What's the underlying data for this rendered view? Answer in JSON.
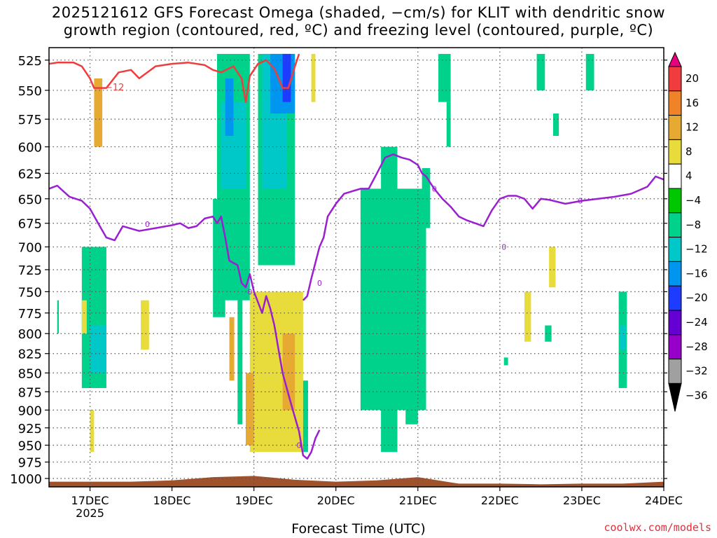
{
  "title": {
    "line1": "2025121612 GFS Forecast Omega (shaded, −cm/s) for KLIT with dendritic snow",
    "line2": "growth region (contoured, red, ºC) and freezing level (contoured, purple, ºC)"
  },
  "credit": "coolwx.com/models",
  "chart_data": {
    "type": "heatmap",
    "xlabel": "Forecast Time (UTC)",
    "x_ticks": [
      "17DEC",
      "18DEC",
      "19DEC",
      "20DEC",
      "21DEC",
      "22DEC",
      "23DEC",
      "24DEC"
    ],
    "x_sublabel": "2025",
    "x_range_days": [
      16.5,
      24.0
    ],
    "y_ticks": [
      525,
      550,
      575,
      600,
      625,
      650,
      675,
      700,
      725,
      750,
      775,
      800,
      825,
      850,
      875,
      900,
      925,
      950,
      975,
      1000
    ],
    "y_range_hpa": [
      515,
      1013
    ],
    "y_scale": "log-pressure",
    "grid": true,
    "colorbar": {
      "labels": [
        "20",
        "16",
        "12",
        "8",
        "4",
        "−4",
        "−8",
        "−12",
        "−16",
        "−20",
        "−24",
        "−28",
        "−32",
        "−36"
      ],
      "colors": [
        "#e8007f",
        "#f03c3c",
        "#f08228",
        "#e6aa32",
        "#e8dc3c",
        "#ffffff",
        "#00c800",
        "#00d28c",
        "#00c8c8",
        "#0096f0",
        "#1e3cff",
        "#6400d2",
        "#9600c8",
        "#a0a0a0",
        "#000000"
      ]
    },
    "omega_cells": [
      {
        "t0": 16.9,
        "t1": 17.2,
        "p0": 700,
        "p1": 870,
        "v": -8
      },
      {
        "t0": 17.0,
        "t1": 17.2,
        "p0": 790,
        "p1": 850,
        "v": -12
      },
      {
        "t0": 16.6,
        "t1": 16.62,
        "p0": 760,
        "p1": 800,
        "v": -8
      },
      {
        "t0": 17.05,
        "t1": 17.15,
        "p0": 540,
        "p1": 600,
        "v": 8
      },
      {
        "t0": 17.0,
        "t1": 17.05,
        "p0": 900,
        "p1": 960,
        "v": 4
      },
      {
        "t0": 16.9,
        "t1": 16.96,
        "p0": 760,
        "p1": 800,
        "v": 4
      },
      {
        "t0": 17.62,
        "t1": 17.72,
        "p0": 760,
        "p1": 820,
        "v": 6
      },
      {
        "t0": 18.55,
        "t1": 18.95,
        "p0": 520,
        "p1": 760,
        "v": -8
      },
      {
        "t0": 18.6,
        "t1": 18.9,
        "p0": 560,
        "p1": 640,
        "v": -12
      },
      {
        "t0": 18.65,
        "t1": 18.75,
        "p0": 540,
        "p1": 590,
        "v": -16
      },
      {
        "t0": 18.5,
        "t1": 18.65,
        "p0": 650,
        "p1": 780,
        "v": -8
      },
      {
        "t0": 19.05,
        "t1": 19.5,
        "p0": 520,
        "p1": 720,
        "v": -8
      },
      {
        "t0": 19.1,
        "t1": 19.4,
        "p0": 520,
        "p1": 640,
        "v": -12
      },
      {
        "t0": 19.2,
        "t1": 19.5,
        "p0": 520,
        "p1": 570,
        "v": -16
      },
      {
        "t0": 19.35,
        "t1": 19.45,
        "p0": 520,
        "p1": 560,
        "v": -20
      },
      {
        "t0": 18.8,
        "t1": 18.86,
        "p0": 700,
        "p1": 920,
        "v": -8
      },
      {
        "t0": 18.95,
        "t1": 19.6,
        "p0": 750,
        "p1": 960,
        "v": 6
      },
      {
        "t0": 19.35,
        "t1": 19.5,
        "p0": 800,
        "p1": 900,
        "v": 10
      },
      {
        "t0": 18.9,
        "t1": 19.0,
        "p0": 850,
        "p1": 950,
        "v": 10
      },
      {
        "t0": 18.7,
        "t1": 18.76,
        "p0": 780,
        "p1": 860,
        "v": 9
      },
      {
        "t0": 19.6,
        "t1": 19.66,
        "p0": 860,
        "p1": 960,
        "v": -8
      },
      {
        "t0": 19.7,
        "t1": 19.75,
        "p0": 520,
        "p1": 560,
        "v": 4
      },
      {
        "t0": 20.3,
        "t1": 21.1,
        "p0": 640,
        "p1": 900,
        "v": -8
      },
      {
        "t0": 20.55,
        "t1": 20.75,
        "p0": 600,
        "p1": 960,
        "v": -8
      },
      {
        "t0": 20.85,
        "t1": 21.0,
        "p0": 700,
        "p1": 920,
        "v": -8
      },
      {
        "t0": 21.05,
        "t1": 21.15,
        "p0": 620,
        "p1": 680,
        "v": -8
      },
      {
        "t0": 21.25,
        "t1": 21.4,
        "p0": 520,
        "p1": 560,
        "v": -8
      },
      {
        "t0": 21.35,
        "t1": 21.4,
        "p0": 560,
        "p1": 600,
        "v": -8
      },
      {
        "t0": 22.45,
        "t1": 22.55,
        "p0": 520,
        "p1": 550,
        "v": -8
      },
      {
        "t0": 22.65,
        "t1": 22.72,
        "p0": 570,
        "p1": 590,
        "v": -8
      },
      {
        "t0": 23.05,
        "t1": 23.15,
        "p0": 520,
        "p1": 550,
        "v": -8
      },
      {
        "t0": 22.3,
        "t1": 22.38,
        "p0": 750,
        "p1": 810,
        "v": 6
      },
      {
        "t0": 22.6,
        "t1": 22.68,
        "p0": 700,
        "p1": 745,
        "v": 6
      },
      {
        "t0": 22.55,
        "t1": 22.63,
        "p0": 790,
        "p1": 810,
        "v": -8
      },
      {
        "t0": 22.05,
        "t1": 22.1,
        "p0": 830,
        "p1": 840,
        "v": -8
      },
      {
        "t0": 23.45,
        "t1": 23.55,
        "p0": 750,
        "p1": 870,
        "v": -8
      },
      {
        "t0": 23.47,
        "t1": 23.53,
        "p0": 790,
        "p1": 820,
        "v": -12
      }
    ],
    "dgz_contour": [
      [
        16.5,
        528
      ],
      [
        16.6,
        527
      ],
      [
        16.8,
        527
      ],
      [
        16.9,
        530
      ],
      [
        17.0,
        540
      ],
      [
        17.05,
        548
      ],
      [
        17.2,
        548
      ],
      [
        17.35,
        535
      ],
      [
        17.5,
        533
      ],
      [
        17.6,
        540
      ],
      [
        17.8,
        530
      ],
      [
        18.0,
        528
      ],
      [
        18.2,
        527
      ],
      [
        18.4,
        529
      ],
      [
        18.5,
        533
      ],
      [
        18.6,
        535
      ],
      [
        18.75,
        530
      ],
      [
        18.85,
        540
      ],
      [
        18.9,
        560
      ],
      [
        18.95,
        538
      ],
      [
        19.05,
        528
      ],
      [
        19.15,
        525
      ],
      [
        19.25,
        532
      ],
      [
        19.35,
        548
      ],
      [
        19.42,
        548
      ],
      [
        19.5,
        530
      ],
      [
        19.55,
        520
      ]
    ],
    "dgz_label": "−12",
    "dgz_label_at": [
      17.3,
      547
    ],
    "freezing_contour": [
      [
        16.5,
        640
      ],
      [
        16.6,
        637
      ],
      [
        16.75,
        648
      ],
      [
        16.9,
        652
      ],
      [
        17.0,
        660
      ],
      [
        17.1,
        675
      ],
      [
        17.2,
        690
      ],
      [
        17.3,
        693
      ],
      [
        17.4,
        678
      ],
      [
        17.6,
        683
      ],
      [
        17.8,
        680
      ],
      [
        18.0,
        677
      ],
      [
        18.1,
        675
      ],
      [
        18.2,
        680
      ],
      [
        18.3,
        678
      ],
      [
        18.4,
        670
      ],
      [
        18.5,
        668
      ],
      [
        18.55,
        675
      ],
      [
        18.6,
        668
      ],
      [
        18.65,
        690
      ],
      [
        18.7,
        715
      ],
      [
        18.8,
        720
      ],
      [
        18.85,
        740
      ],
      [
        18.9,
        745
      ],
      [
        18.95,
        730
      ],
      [
        19.0,
        750
      ],
      [
        19.1,
        775
      ],
      [
        19.15,
        755
      ],
      [
        19.2,
        770
      ],
      [
        19.25,
        790
      ],
      [
        19.3,
        820
      ],
      [
        19.35,
        850
      ],
      [
        19.4,
        870
      ],
      [
        19.45,
        890
      ],
      [
        19.5,
        910
      ],
      [
        19.55,
        930
      ],
      [
        19.6,
        965
      ],
      [
        19.65,
        970
      ],
      [
        19.7,
        960
      ],
      [
        19.75,
        940
      ],
      [
        19.8,
        928
      ]
    ],
    "freezing_contour2": [
      [
        19.6,
        760
      ],
      [
        19.65,
        755
      ],
      [
        19.7,
        735
      ],
      [
        19.8,
        700
      ],
      [
        19.85,
        690
      ],
      [
        19.9,
        668
      ],
      [
        20.0,
        655
      ],
      [
        20.1,
        645
      ],
      [
        20.3,
        640
      ],
      [
        20.4,
        640
      ],
      [
        20.5,
        625
      ],
      [
        20.6,
        610
      ],
      [
        20.7,
        607
      ],
      [
        20.8,
        610
      ],
      [
        20.9,
        612
      ],
      [
        21.0,
        617
      ],
      [
        21.05,
        625
      ],
      [
        21.1,
        628
      ],
      [
        21.2,
        640
      ],
      [
        21.3,
        650
      ],
      [
        21.4,
        658
      ],
      [
        21.5,
        668
      ],
      [
        21.6,
        672
      ],
      [
        21.7,
        675
      ],
      [
        21.8,
        678
      ],
      [
        21.9,
        662
      ],
      [
        22.0,
        650
      ],
      [
        22.1,
        647
      ],
      [
        22.2,
        647
      ],
      [
        22.3,
        650
      ],
      [
        22.4,
        660
      ],
      [
        22.5,
        650
      ],
      [
        22.6,
        651
      ],
      [
        22.8,
        655
      ],
      [
        23.0,
        652
      ],
      [
        23.2,
        650
      ],
      [
        23.4,
        648
      ],
      [
        23.6,
        645
      ],
      [
        23.8,
        638
      ],
      [
        23.9,
        628
      ],
      [
        24.0,
        631
      ]
    ],
    "freezing_label": "0",
    "ground_pressure": [
      [
        16.5,
        1005
      ],
      [
        17.0,
        1005
      ],
      [
        17.5,
        1005
      ],
      [
        18.0,
        1003
      ],
      [
        18.5,
        998
      ],
      [
        19.0,
        996
      ],
      [
        19.5,
        1002
      ],
      [
        20.0,
        1005
      ],
      [
        20.5,
        1003
      ],
      [
        21.0,
        998
      ],
      [
        21.5,
        1008
      ],
      [
        22.0,
        1008
      ],
      [
        22.5,
        1009
      ],
      [
        23.0,
        1008
      ],
      [
        23.5,
        1008
      ],
      [
        24.0,
        1005
      ]
    ]
  }
}
